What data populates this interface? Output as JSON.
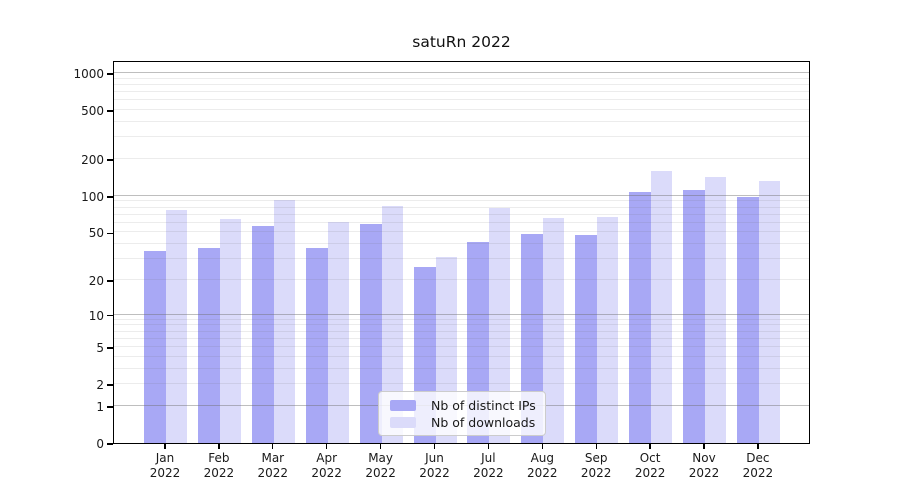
{
  "title": "satuRn 2022",
  "legend": {
    "items": [
      {
        "label": "Nb of distinct IPs",
        "color": "#a8a8f5"
      },
      {
        "label": "Nb of downloads",
        "color": "#dbdbfa"
      }
    ]
  },
  "x_axis": {
    "year": "2022",
    "months": [
      "Jan",
      "Feb",
      "Mar",
      "Apr",
      "May",
      "Jun",
      "Jul",
      "Aug",
      "Sep",
      "Oct",
      "Nov",
      "Dec"
    ]
  },
  "y_axis": {
    "ticks": [
      0,
      1,
      2,
      5,
      10,
      20,
      50,
      100,
      200,
      500,
      1000
    ]
  },
  "colors": {
    "axis": "#000000",
    "text": "#1a1a1a",
    "grid_major": "rgba(110,110,110,0.45)",
    "grid_minor": "rgba(110,110,110,0.13)"
  },
  "chart_data": {
    "type": "bar",
    "title": "satuRn 2022",
    "categories": [
      "Jan 2022",
      "Feb 2022",
      "Mar 2022",
      "Apr 2022",
      "May 2022",
      "Jun 2022",
      "Jul 2022",
      "Aug 2022",
      "Sep 2022",
      "Oct 2022",
      "Nov 2022",
      "Dec 2022"
    ],
    "series": [
      {
        "name": "Nb of distinct IPs",
        "color": "#a8a8f5",
        "values": [
          35,
          37,
          57,
          37,
          59,
          26,
          42,
          49,
          48,
          108,
          112,
          98
        ]
      },
      {
        "name": "Nb of downloads",
        "color": "#dbdbfa",
        "values": [
          76,
          64,
          93,
          61,
          83,
          31,
          80,
          66,
          67,
          160,
          143,
          132
        ]
      }
    ],
    "xlabel": "",
    "ylabel": "",
    "y_scale": "log10(value+1)",
    "ylim": [
      0,
      1275
    ],
    "y_ticks": [
      0,
      1,
      2,
      5,
      10,
      20,
      50,
      100,
      200,
      500,
      1000
    ],
    "grid": "horizontal; major lines at 1,10,100,1000; faint minor lines at 2-9 per decade",
    "legend_position": "lower center inside plot"
  }
}
